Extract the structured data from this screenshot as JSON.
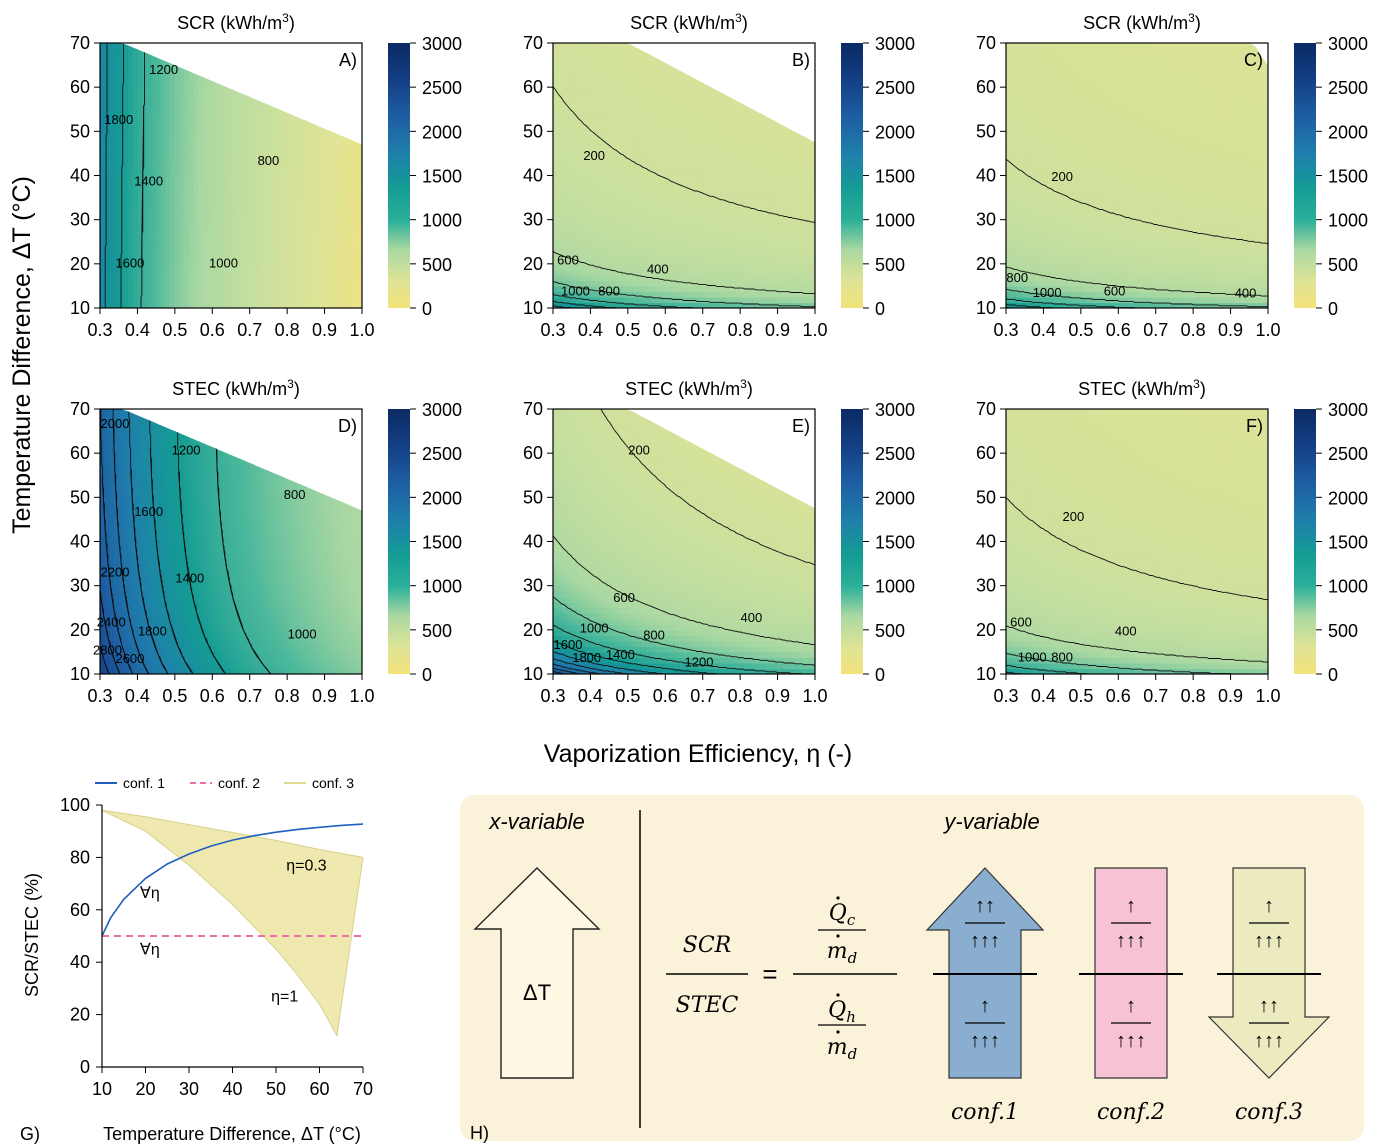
{
  "figure": {
    "shared_ylabel": "Temperature Difference, ΔT (°C)",
    "shared_xlabel": "Vaporization Efficiency, η (-)"
  },
  "colorbar": {
    "ticks": [
      "3000",
      "2500",
      "2000",
      "1500",
      "1000",
      "500",
      "0"
    ],
    "range": [
      0,
      3000
    ],
    "stops": [
      "#f3e27a",
      "#d9e49a",
      "#a9d8a2",
      "#4cb89b",
      "#149c94",
      "#1f7fab",
      "#1e5ea3",
      "#143f85",
      "#0a2a63"
    ]
  },
  "chart_data": [
    {
      "id": "A",
      "panel_label": "A)",
      "type": "contour",
      "title": "SCR (kWh/m",
      "title_sup": "3",
      "title_close": ")",
      "xlim": [
        0.3,
        1.0
      ],
      "ylim": [
        10,
        70
      ],
      "xticks": [
        "0.3",
        "0.4",
        "0.5",
        "0.6",
        "0.7",
        "0.8",
        "0.9",
        "1.0"
      ],
      "yticks": [
        "70",
        "60",
        "50",
        "40",
        "30",
        "20",
        "10"
      ],
      "contour_labels": [
        {
          "text": "1800",
          "x": 0.35,
          "y": 52.8
        },
        {
          "text": "1200",
          "x": 0.47,
          "y": 64.1
        },
        {
          "text": "1400",
          "x": 0.43,
          "y": 38.9
        },
        {
          "text": "800",
          "x": 0.75,
          "y": 43.5
        },
        {
          "text": "1600",
          "x": 0.38,
          "y": 20.3
        },
        {
          "text": "1000",
          "x": 0.63,
          "y": 20.3
        }
      ]
    },
    {
      "id": "B",
      "panel_label": "B)",
      "type": "contour",
      "title": "SCR (kWh/m",
      "title_sup": "3",
      "title_close": ")",
      "xlim": [
        0.3,
        1.0
      ],
      "ylim": [
        10,
        70
      ],
      "xticks": [
        "0.3",
        "0.4",
        "0.5",
        "0.6",
        "0.7",
        "0.8",
        "0.9",
        "1.0"
      ],
      "yticks": [
        "70",
        "60",
        "50",
        "40",
        "30",
        "20",
        "10"
      ],
      "contour_labels": [
        {
          "text": "200",
          "x": 0.41,
          "y": 44.6
        },
        {
          "text": "600",
          "x": 0.34,
          "y": 21.0
        },
        {
          "text": "400",
          "x": 0.58,
          "y": 19.0
        },
        {
          "text": "1000",
          "x": 0.36,
          "y": 14.0
        },
        {
          "text": "800",
          "x": 0.45,
          "y": 14.0
        }
      ]
    },
    {
      "id": "C",
      "panel_label": "C)",
      "type": "contour",
      "title": "SCR (kWh/m",
      "title_sup": "3",
      "title_close": ")",
      "xlim": [
        0.3,
        1.0
      ],
      "ylim": [
        10,
        70
      ],
      "xticks": [
        "0.3",
        "0.4",
        "0.5",
        "0.6",
        "0.7",
        "0.8",
        "0.9",
        "1.0"
      ],
      "yticks": [
        "70",
        "60",
        "50",
        "40",
        "30",
        "20",
        "10"
      ],
      "contour_labels": [
        {
          "text": "200",
          "x": 0.45,
          "y": 39.9
        },
        {
          "text": "800",
          "x": 0.33,
          "y": 17.0
        },
        {
          "text": "1000",
          "x": 0.41,
          "y": 13.6
        },
        {
          "text": "600",
          "x": 0.59,
          "y": 14.0
        },
        {
          "text": "400",
          "x": 0.94,
          "y": 13.5
        }
      ]
    },
    {
      "id": "D",
      "panel_label": "D)",
      "type": "contour",
      "title": "STEC (kWh/m",
      "title_sup": "3",
      "title_close": ")",
      "xlim": [
        0.3,
        1.0
      ],
      "ylim": [
        10,
        70
      ],
      "xticks": [
        "0.3",
        "0.4",
        "0.5",
        "0.6",
        "0.7",
        "0.8",
        "0.9",
        "1.0"
      ],
      "yticks": [
        "70",
        "60",
        "50",
        "40",
        "30",
        "20",
        "10"
      ],
      "contour_labels": [
        {
          "text": "2000",
          "x": 0.34,
          "y": 66.8
        },
        {
          "text": "1200",
          "x": 0.53,
          "y": 60.8
        },
        {
          "text": "800",
          "x": 0.82,
          "y": 50.7
        },
        {
          "text": "1600",
          "x": 0.43,
          "y": 46.9
        },
        {
          "text": "2200",
          "x": 0.34,
          "y": 33.2
        },
        {
          "text": "1400",
          "x": 0.54,
          "y": 31.9
        },
        {
          "text": "2400",
          "x": 0.33,
          "y": 21.9
        },
        {
          "text": "1800",
          "x": 0.44,
          "y": 19.9
        },
        {
          "text": "1000",
          "x": 0.84,
          "y": 19.2
        },
        {
          "text": "2800",
          "x": 0.32,
          "y": 15.5
        },
        {
          "text": "2600",
          "x": 0.38,
          "y": 13.6
        }
      ]
    },
    {
      "id": "E",
      "panel_label": "E)",
      "type": "contour",
      "title": "STEC (kWh/m",
      "title_sup": "3",
      "title_close": ")",
      "xlim": [
        0.3,
        1.0
      ],
      "ylim": [
        10,
        70
      ],
      "xticks": [
        "0.3",
        "0.4",
        "0.5",
        "0.6",
        "0.7",
        "0.8",
        "0.9",
        "1.0"
      ],
      "yticks": [
        "70",
        "60",
        "50",
        "40",
        "30",
        "20",
        "10"
      ],
      "contour_labels": [
        {
          "text": "200",
          "x": 0.53,
          "y": 60.8
        },
        {
          "text": "600",
          "x": 0.49,
          "y": 27.4
        },
        {
          "text": "400",
          "x": 0.83,
          "y": 22.9
        },
        {
          "text": "1000",
          "x": 0.41,
          "y": 20.5
        },
        {
          "text": "800",
          "x": 0.57,
          "y": 19.0
        },
        {
          "text": "1600",
          "x": 0.34,
          "y": 16.8
        },
        {
          "text": "1800",
          "x": 0.39,
          "y": 13.9
        },
        {
          "text": "1400",
          "x": 0.48,
          "y": 14.5
        },
        {
          "text": "1200",
          "x": 0.69,
          "y": 12.8
        }
      ]
    },
    {
      "id": "F",
      "panel_label": "F)",
      "type": "contour",
      "title": "STEC (kWh/m",
      "title_sup": "3",
      "title_close": ")",
      "xlim": [
        0.3,
        1.0
      ],
      "ylim": [
        10,
        70
      ],
      "xticks": [
        "0.3",
        "0.4",
        "0.5",
        "0.6",
        "0.7",
        "0.8",
        "0.9",
        "1.0"
      ],
      "yticks": [
        "70",
        "60",
        "50",
        "40",
        "30",
        "20",
        "10"
      ],
      "contour_labels": [
        {
          "text": "200",
          "x": 0.48,
          "y": 45.8
        },
        {
          "text": "600",
          "x": 0.34,
          "y": 21.9
        },
        {
          "text": "400",
          "x": 0.62,
          "y": 19.9
        },
        {
          "text": "1000",
          "x": 0.37,
          "y": 14.0
        },
        {
          "text": "800",
          "x": 0.45,
          "y": 14.0
        }
      ]
    },
    {
      "id": "G",
      "panel_label": "G)",
      "type": "line",
      "xlabel": "Temperature Difference, ΔT (°C)",
      "ylabel": "SCR/STEC (%)",
      "xlim": [
        10,
        70
      ],
      "ylim": [
        0,
        100
      ],
      "xticks": [
        "10",
        "20",
        "30",
        "40",
        "50",
        "60",
        "70"
      ],
      "yticks": [
        "100",
        "80",
        "60",
        "40",
        "20",
        "0"
      ],
      "legend": [
        {
          "name": "conf. 1",
          "color": "#1f5fbf",
          "style": "solid"
        },
        {
          "name": "conf. 2",
          "color": "#ee6fa8",
          "style": "dashed"
        },
        {
          "name": "conf. 3",
          "color": "#e9e2a4",
          "style": "area"
        }
      ],
      "series": [
        {
          "name": "conf. 1",
          "x": [
            10,
            12,
            15,
            20,
            25,
            30,
            35,
            40,
            45,
            50,
            55,
            60,
            65,
            70
          ],
          "y": [
            50,
            57,
            64,
            72,
            77.5,
            81.3,
            84.3,
            86.6,
            88.3,
            89.6,
            90.7,
            91.5,
            92.2,
            92.7
          ]
        },
        {
          "name": "conf. 2",
          "x": [
            10,
            70
          ],
          "y": [
            50,
            50
          ]
        }
      ],
      "band": {
        "name": "conf. 3",
        "upper": {
          "x": [
            10,
            20,
            30,
            40,
            50,
            60,
            70
          ],
          "y": [
            98,
            95.5,
            92.5,
            89.5,
            86.5,
            83,
            80
          ]
        },
        "lower": {
          "x": [
            10,
            20,
            30,
            40,
            50,
            55,
            60,
            64
          ],
          "y": [
            98,
            90,
            77,
            62,
            45,
            35,
            24,
            12
          ]
        }
      },
      "annotations": [
        {
          "text": "∀η",
          "x": 21,
          "y": 64.5
        },
        {
          "text": "∀η",
          "x": 21,
          "y": 43
        },
        {
          "text": "η=0.3",
          "x": 57,
          "y": 75
        },
        {
          "text": "η=1",
          "x": 52,
          "y": 25
        }
      ]
    }
  ],
  "panel_h": {
    "label": "H)",
    "x_header": "x-variable",
    "y_header": "y-variable",
    "x_arrow_label": "ΔT",
    "eq_left_num": "SCR",
    "eq_left_den": "STEC",
    "eq_sign": "=",
    "eq_right_num_q": "Q",
    "eq_right_num_sub": "c",
    "eq_right_den_q": "Q",
    "eq_right_den_sub": "h",
    "eq_md": "m",
    "eq_md_sub": "d",
    "arrows": [
      {
        "name": "conf.1",
        "color": "#8aaed0",
        "top_num": "↑↑",
        "top_den": "↑↑↑",
        "bot_num": "↑",
        "bot_den": "↑↑↑"
      },
      {
        "name": "conf.2",
        "color": "#f8c2d5",
        "top_num": "↑",
        "top_den": "↑↑↑",
        "bot_num": "↑",
        "bot_den": "↑↑↑"
      },
      {
        "name": "conf.3",
        "color": "#ecebbf",
        "top_num": "↑",
        "top_den": "↑↑↑",
        "bot_num": "↑↑",
        "bot_den": "↑↑↑"
      }
    ]
  }
}
